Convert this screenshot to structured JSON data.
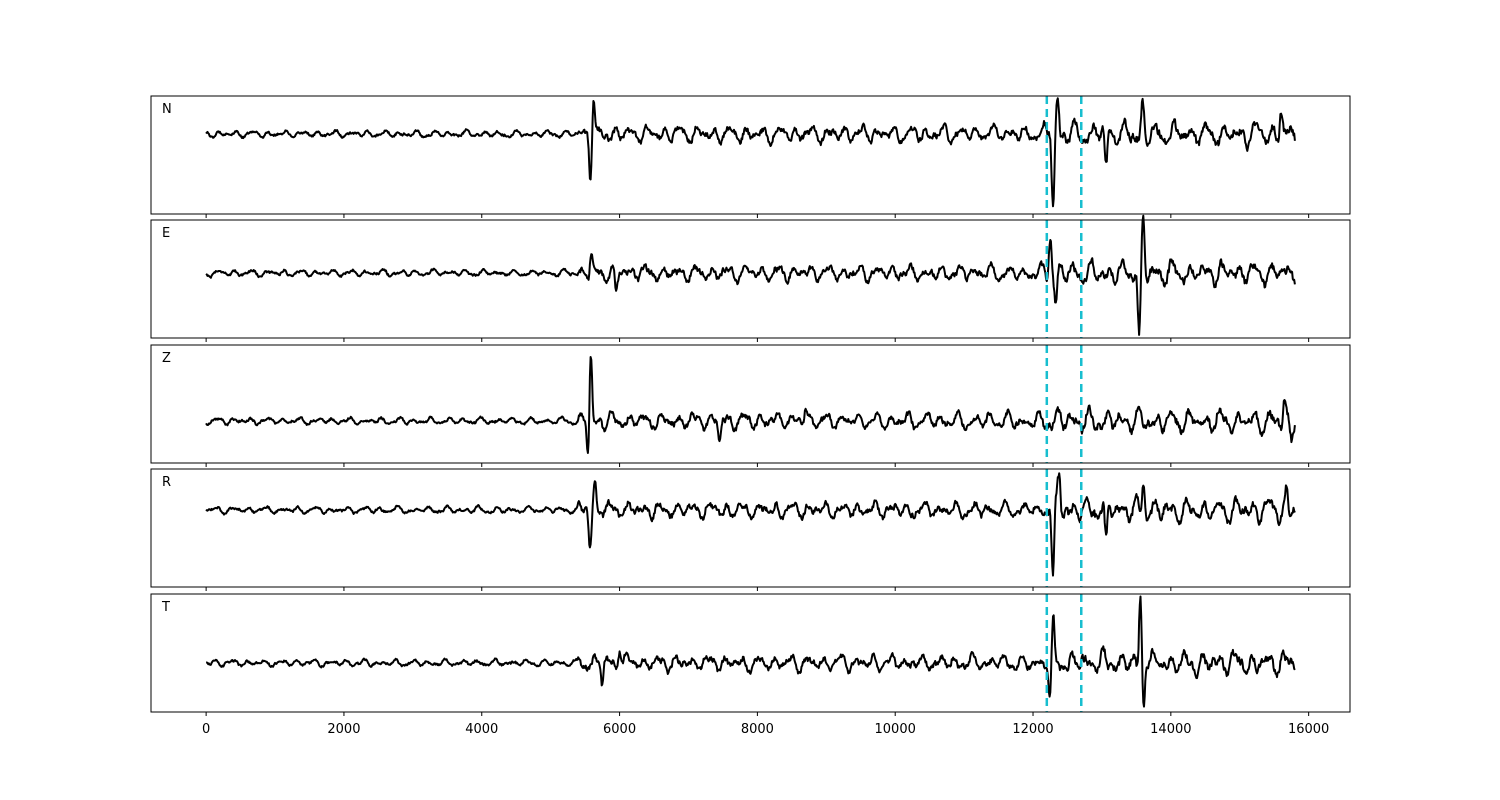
{
  "chart_data": {
    "type": "line",
    "layout": "5 stacked panels, shared x-axis",
    "xlim": [
      -800,
      16600
    ],
    "x_ticks": [
      0,
      2000,
      4000,
      6000,
      8000,
      10000,
      12000,
      14000,
      16000
    ],
    "x_tick_labels": [
      "0",
      "2000",
      "4000",
      "6000",
      "8000",
      "10000",
      "12000",
      "14000",
      "16000"
    ],
    "samples": 15800,
    "line_color": "#000000",
    "pick_color": "#17becf",
    "picks_x": [
      12200,
      12700
    ],
    "channels": [
      {
        "label": "N",
        "baseline": 0.0,
        "bursts": [
          {
            "x": 5580,
            "amp": -0.58
          },
          {
            "x": 5620,
            "amp": 0.45
          },
          {
            "x": 12290,
            "amp": -1.0
          },
          {
            "x": 12360,
            "amp": 0.45
          },
          {
            "x": 13060,
            "amp": -0.5
          },
          {
            "x": 13590,
            "amp": 0.42
          },
          {
            "x": 15600,
            "amp": 0.35
          }
        ]
      },
      {
        "label": "E",
        "baseline": 0.0,
        "bursts": [
          {
            "x": 5590,
            "amp": 0.3
          },
          {
            "x": 5950,
            "amp": -0.3
          },
          {
            "x": 12250,
            "amp": 0.58
          },
          {
            "x": 12330,
            "amp": -0.4
          },
          {
            "x": 13540,
            "amp": -0.9
          },
          {
            "x": 13600,
            "amp": 0.7
          }
        ]
      },
      {
        "label": "Z",
        "baseline": 0.0,
        "bursts": [
          {
            "x": 5580,
            "amp": 1.0
          },
          {
            "x": 5550,
            "amp": -0.5
          },
          {
            "x": 7450,
            "amp": -0.28
          },
          {
            "x": 8700,
            "amp": 0.2
          },
          {
            "x": 15650,
            "amp": 0.32
          },
          {
            "x": 15750,
            "amp": -0.18
          }
        ]
      },
      {
        "label": "R",
        "baseline": 0.0,
        "bursts": [
          {
            "x": 5570,
            "amp": -0.5
          },
          {
            "x": 5640,
            "amp": 0.38
          },
          {
            "x": 12290,
            "amp": -1.0
          },
          {
            "x": 12380,
            "amp": 0.48
          },
          {
            "x": 13060,
            "amp": -0.55
          },
          {
            "x": 13600,
            "amp": 0.38
          },
          {
            "x": 15680,
            "amp": 0.28
          }
        ]
      },
      {
        "label": "T",
        "baseline": 0.0,
        "bursts": [
          {
            "x": 5750,
            "amp": -0.3
          },
          {
            "x": 6000,
            "amp": 0.25
          },
          {
            "x": 12250,
            "amp": -0.5
          },
          {
            "x": 12290,
            "amp": 0.5
          },
          {
            "x": 13560,
            "amp": 0.95
          },
          {
            "x": 13600,
            "amp": -0.55
          }
        ]
      }
    ]
  }
}
